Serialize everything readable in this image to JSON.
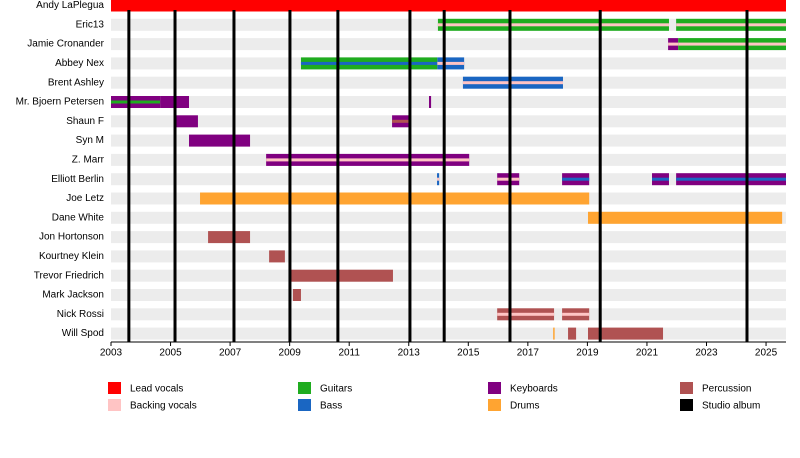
{
  "chart_data": {
    "type": "timeline",
    "xlim": [
      2003,
      2025.67
    ],
    "xticks": [
      2003,
      2005,
      2007,
      2009,
      2011,
      2013,
      2015,
      2017,
      2019,
      2021,
      2023,
      2025
    ],
    "categories": [
      "Andy LaPlegua",
      "Eric13",
      "Jamie Cronander",
      "Abbey Nex",
      "Brent Ashley",
      "Mr. Bjoern Petersen",
      "Shaun F",
      "Syn M",
      "Z. Marr",
      "Elliott Berlin",
      "Joe Letz",
      "Dane White",
      "Jon Hortonson",
      "Kourtney Klein",
      "Trevor Friedrich",
      "Mark Jackson",
      "Nick Rossi",
      "Will Spod"
    ],
    "roles": [
      {
        "name": "Lead vocals",
        "color": "#ff0000"
      },
      {
        "name": "Backing vocals",
        "color": "#ffc4c4"
      },
      {
        "name": "Guitars",
        "color": "#1fac1f"
      },
      {
        "name": "Bass",
        "color": "#1a66c2"
      },
      {
        "name": "Keyboards",
        "color": "#800080"
      },
      {
        "name": "Drums",
        "color": "#ffa431"
      },
      {
        "name": "Percussion",
        "color": "#b05252"
      },
      {
        "name": "Studio album",
        "color": "#000000"
      }
    ],
    "bars": [
      {
        "row": 0,
        "role": 0,
        "start": 2003,
        "end": 2025.67
      },
      {
        "row": 1,
        "role": 2,
        "role2": 1,
        "start": 2013.98,
        "end": 2021.74
      },
      {
        "row": 1,
        "role": 2,
        "role2": 1,
        "start": 2021.98,
        "end": 2025.67
      },
      {
        "row": 2,
        "role": 4,
        "role2": 1,
        "start": 2021.71,
        "end": 2022.05
      },
      {
        "row": 2,
        "role": 2,
        "role2": 1,
        "start": 2022.05,
        "end": 2025.67
      },
      {
        "row": 3,
        "role": 2,
        "role2": 3,
        "start": 2009.38,
        "end": 2013.96
      },
      {
        "row": 3,
        "role": 3,
        "role2": 1,
        "start": 2013.96,
        "end": 2014.86
      },
      {
        "row": 4,
        "role": 3,
        "role2": 1,
        "start": 2014.82,
        "end": 2018.18
      },
      {
        "row": 5,
        "role": 4,
        "role2": 2,
        "start": 2003,
        "end": 2004.65
      },
      {
        "row": 5,
        "role": 4,
        "start": 2004.65,
        "end": 2005.62
      },
      {
        "row": 5,
        "role": 4,
        "start": 2013.68,
        "end": 2013.75
      },
      {
        "row": 6,
        "role": 4,
        "start": 2005.15,
        "end": 2005.92
      },
      {
        "row": 6,
        "role": 4,
        "role2": 6,
        "start": 2012.44,
        "end": 2013.01
      },
      {
        "row": 7,
        "role": 4,
        "start": 2005.62,
        "end": 2007.67
      },
      {
        "row": 8,
        "role": 4,
        "role2": 1,
        "start": 2008.21,
        "end": 2015.03
      },
      {
        "row": 9,
        "role": 3,
        "role2": 1,
        "start": 2013.95,
        "end": 2014.02
      },
      {
        "row": 9,
        "role": 4,
        "role2": 1,
        "start": 2015.97,
        "end": 2016.71
      },
      {
        "row": 9,
        "role": 4,
        "role2": 3,
        "start": 2018.15,
        "end": 2019.06
      },
      {
        "row": 9,
        "role": 4,
        "role2": 3,
        "start": 2021.17,
        "end": 2021.74
      },
      {
        "row": 9,
        "role": 4,
        "role2": 3,
        "start": 2021.98,
        "end": 2025.67
      },
      {
        "row": 10,
        "role": 5,
        "start": 2005.99,
        "end": 2019.06
      },
      {
        "row": 11,
        "role": 5,
        "start": 2019.02,
        "end": 2025.54
      },
      {
        "row": 12,
        "role": 6,
        "start": 2006.26,
        "end": 2007.67
      },
      {
        "row": 13,
        "role": 6,
        "start": 2008.31,
        "end": 2008.84
      },
      {
        "row": 14,
        "role": 6,
        "start": 2009.01,
        "end": 2012.47
      },
      {
        "row": 15,
        "role": 6,
        "start": 2009.11,
        "end": 2009.38
      },
      {
        "row": 16,
        "role": 6,
        "role2": 1,
        "start": 2015.97,
        "end": 2017.88
      },
      {
        "row": 16,
        "role": 6,
        "role2": 1,
        "start": 2018.15,
        "end": 2019.06
      },
      {
        "row": 17,
        "role": 5,
        "start": 2017.85,
        "end": 2017.9
      },
      {
        "row": 17,
        "role": 6,
        "start": 2018.35,
        "end": 2018.62
      },
      {
        "row": 17,
        "role": 6,
        "start": 2019.02,
        "end": 2021.54
      }
    ],
    "albums": [
      2003.6,
      2005.15,
      2007.13,
      2009.01,
      2010.62,
      2013.04,
      2014.19,
      2016.4,
      2019.43,
      2024.36
    ],
    "album_role": 7
  }
}
